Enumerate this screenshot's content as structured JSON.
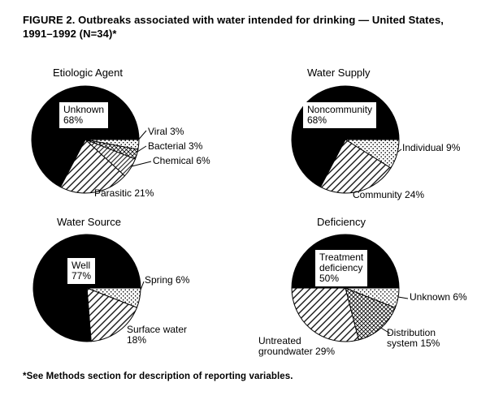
{
  "page": {
    "title_line1": "FIGURE 2. Outbreaks associated with water intended for drinking — United States,",
    "title_line2": "1991–1992 (N=34)*",
    "footnote": "*See Methods section for description of reporting variables."
  },
  "chart_data": [
    {
      "type": "pie",
      "title": "Etiologic Agent",
      "n_total": 34,
      "start_angle_deg": 90,
      "slices": [
        {
          "label": "Viral",
          "value_pct": 3,
          "pattern": "stipple",
          "display": "Viral 3%"
        },
        {
          "label": "Bacterial",
          "value_pct": 3,
          "pattern": "cross",
          "display": "Bacterial 3%"
        },
        {
          "label": "Chemical",
          "value_pct": 6,
          "pattern": "diag2",
          "display": "Chemical 6%"
        },
        {
          "label": "Parasitic",
          "value_pct": 21,
          "pattern": "diag",
          "display": "Parasitic 21%"
        },
        {
          "label": "Unknown",
          "value_pct": 68,
          "pattern": "solid",
          "display": "Unknown 68%"
        }
      ],
      "box_lines": [
        "Unknown",
        "68%"
      ]
    },
    {
      "type": "pie",
      "title": "Water Supply",
      "n_total": 34,
      "start_angle_deg": 90,
      "slices": [
        {
          "label": "Individual",
          "value_pct": 9,
          "pattern": "stipple",
          "display": "Individual 9%"
        },
        {
          "label": "Community",
          "value_pct": 24,
          "pattern": "diag",
          "display": "Community 24%"
        },
        {
          "label": "Noncommunity",
          "value_pct": 68,
          "pattern": "solid",
          "display": "Noncommunity 68%"
        }
      ],
      "box_lines": [
        "Noncommunity",
        "68%"
      ]
    },
    {
      "type": "pie",
      "title": "Water Source",
      "n_total": 34,
      "start_angle_deg": 90,
      "slices": [
        {
          "label": "Spring",
          "value_pct": 6,
          "pattern": "stipple",
          "display": "Spring 6%"
        },
        {
          "label": "Surface water",
          "value_pct": 18,
          "pattern": "diag",
          "display": "Surface water 18%"
        },
        {
          "label": "Well",
          "value_pct": 77,
          "pattern": "solid",
          "display": "Well 77%"
        }
      ],
      "box_lines": [
        "Well",
        "77%"
      ]
    },
    {
      "type": "pie",
      "title": "Deficiency",
      "n_total": 34,
      "start_angle_deg": 270,
      "slices": [
        {
          "label": "Treatment deficiency",
          "value_pct": 50,
          "pattern": "solid",
          "display": "Treatment deficiency 50%"
        },
        {
          "label": "Unknown",
          "value_pct": 6,
          "pattern": "stipple",
          "display": "Unknown 6%"
        },
        {
          "label": "Distribution system",
          "value_pct": 15,
          "pattern": "cross",
          "display": "Distribution system 15%"
        },
        {
          "label": "Untreated groundwater",
          "value_pct": 29,
          "pattern": "diag",
          "display": "Untreated groundwater 29%"
        }
      ],
      "box_lines": [
        "Treatment",
        "deficiency",
        "50%"
      ]
    }
  ]
}
